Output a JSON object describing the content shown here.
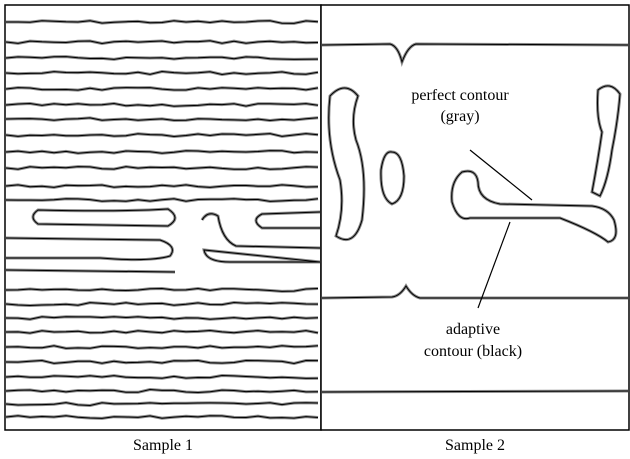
{
  "panels": [
    {
      "caption": "Sample 1"
    },
    {
      "caption": "Sample 2",
      "annotations": [
        {
          "lines": [
            "perfect contour",
            "(gray)"
          ]
        },
        {
          "lines": [
            "adaptive",
            "contour (black)"
          ]
        }
      ]
    }
  ]
}
